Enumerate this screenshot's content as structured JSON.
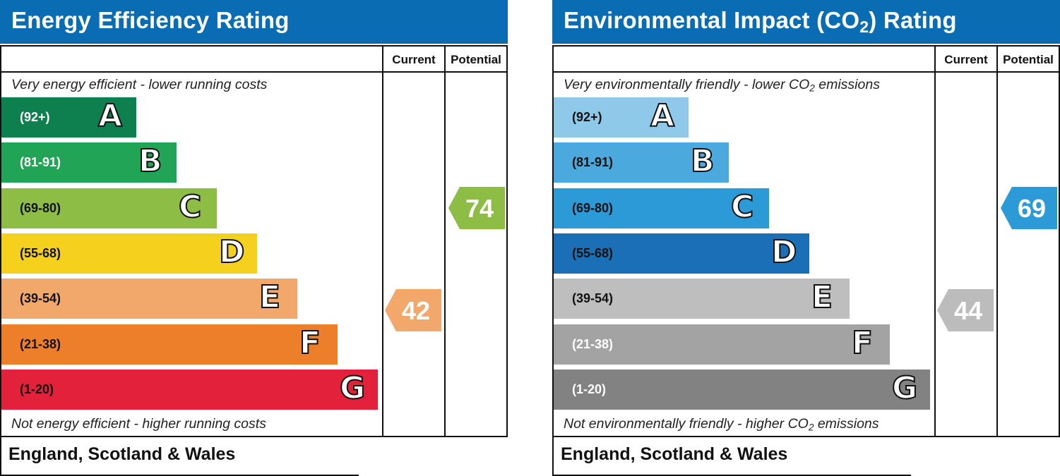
{
  "chart_data": [
    {
      "type": "bar",
      "title": "Energy Efficiency Rating",
      "column_headers": [
        "Current",
        "Potential"
      ],
      "top_caption": "Very energy efficient - lower running costs",
      "bottom_caption": "Not energy efficient - higher running costs",
      "bands": [
        {
          "letter": "A",
          "range": "(92+)",
          "color": "#0e7f4e",
          "text_color": "#ffffff"
        },
        {
          "letter": "B",
          "range": "(81-91)",
          "color": "#21a456",
          "text_color": "#ffffff"
        },
        {
          "letter": "C",
          "range": "(69-80)",
          "color": "#8dbd45",
          "text_color": "#111111"
        },
        {
          "letter": "D",
          "range": "(55-68)",
          "color": "#f5d01c",
          "text_color": "#111111"
        },
        {
          "letter": "E",
          "range": "(39-54)",
          "color": "#f2a86b",
          "text_color": "#111111"
        },
        {
          "letter": "F",
          "range": "(21-38)",
          "color": "#ee7f2a",
          "text_color": "#111111"
        },
        {
          "letter": "G",
          "range": "(1-20)",
          "color": "#e3213b",
          "text_color": "#111111"
        }
      ],
      "current": {
        "value": 42,
        "band": "E",
        "color": "#f2a86b"
      },
      "potential": {
        "value": 74,
        "band": "C",
        "color": "#8dbd45"
      },
      "footer": "England, Scotland & Wales"
    },
    {
      "type": "bar",
      "title": "Environmental Impact (CO2) Rating",
      "column_headers": [
        "Current",
        "Potential"
      ],
      "top_caption": "Very environmentally friendly - lower CO2 emissions",
      "bottom_caption": "Not environmentally friendly - higher CO2 emissions",
      "bands": [
        {
          "letter": "A",
          "range": "(92+)",
          "color": "#8ec9ea",
          "text_color": "#111111"
        },
        {
          "letter": "B",
          "range": "(81-91)",
          "color": "#4ba9de",
          "text_color": "#111111"
        },
        {
          "letter": "C",
          "range": "(69-80)",
          "color": "#2b9ad6",
          "text_color": "#111111"
        },
        {
          "letter": "D",
          "range": "(55-68)",
          "color": "#1a6fb6",
          "text_color": "#111111"
        },
        {
          "letter": "E",
          "range": "(39-54)",
          "color": "#bebebe",
          "text_color": "#111111"
        },
        {
          "letter": "F",
          "range": "(21-38)",
          "color": "#a3a3a3",
          "text_color": "#ffffff"
        },
        {
          "letter": "G",
          "range": "(1-20)",
          "color": "#828282",
          "text_color": "#ffffff"
        }
      ],
      "current": {
        "value": 44,
        "band": "E",
        "color": "#bcbcbc"
      },
      "potential": {
        "value": 69,
        "band": "C",
        "color": "#2b9ad6"
      },
      "footer": "England, Scotland & Wales"
    }
  ]
}
